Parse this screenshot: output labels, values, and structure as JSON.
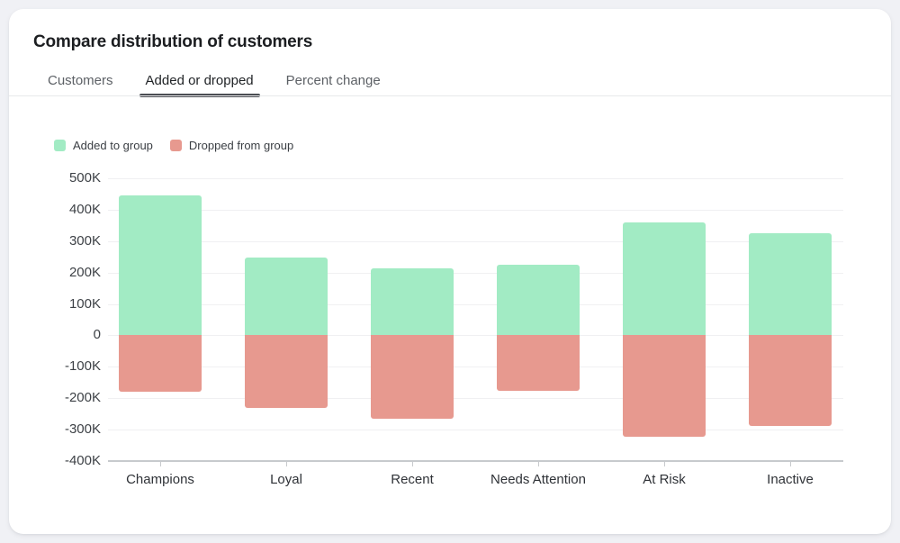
{
  "page": {
    "background": "#F0F1F5"
  },
  "card": {
    "title": "Compare distribution of customers",
    "tabs": [
      {
        "label": "Customers",
        "active": false
      },
      {
        "label": "Added or dropped",
        "active": true
      },
      {
        "label": "Percent change",
        "active": false
      }
    ]
  },
  "legend": [
    {
      "label": "Added to group",
      "color": "#A2EBC4"
    },
    {
      "label": "Dropped from group",
      "color": "#E7998F"
    }
  ],
  "chart_data": {
    "type": "bar",
    "categories": [
      "Champions",
      "Loyal",
      "Recent",
      "Needs Attention",
      "At Risk",
      "Inactive"
    ],
    "series": [
      {
        "name": "Added to group",
        "color": "#A2EBC4",
        "values": [
          445000,
          249000,
          213000,
          226000,
          360000,
          324000
        ]
      },
      {
        "name": "Dropped from group",
        "color": "#E7998F",
        "values": [
          -180000,
          -231000,
          -266000,
          -176000,
          -322000,
          -287000
        ]
      }
    ],
    "ylim": [
      -400000,
      500000
    ],
    "ytick_step": 100000,
    "ytick_labels": [
      "500K",
      "400K",
      "300K",
      "200K",
      "100K",
      "0",
      "-100K",
      "-200K",
      "-300K",
      "-400K"
    ],
    "grid": true,
    "legend_position": "top-left"
  }
}
